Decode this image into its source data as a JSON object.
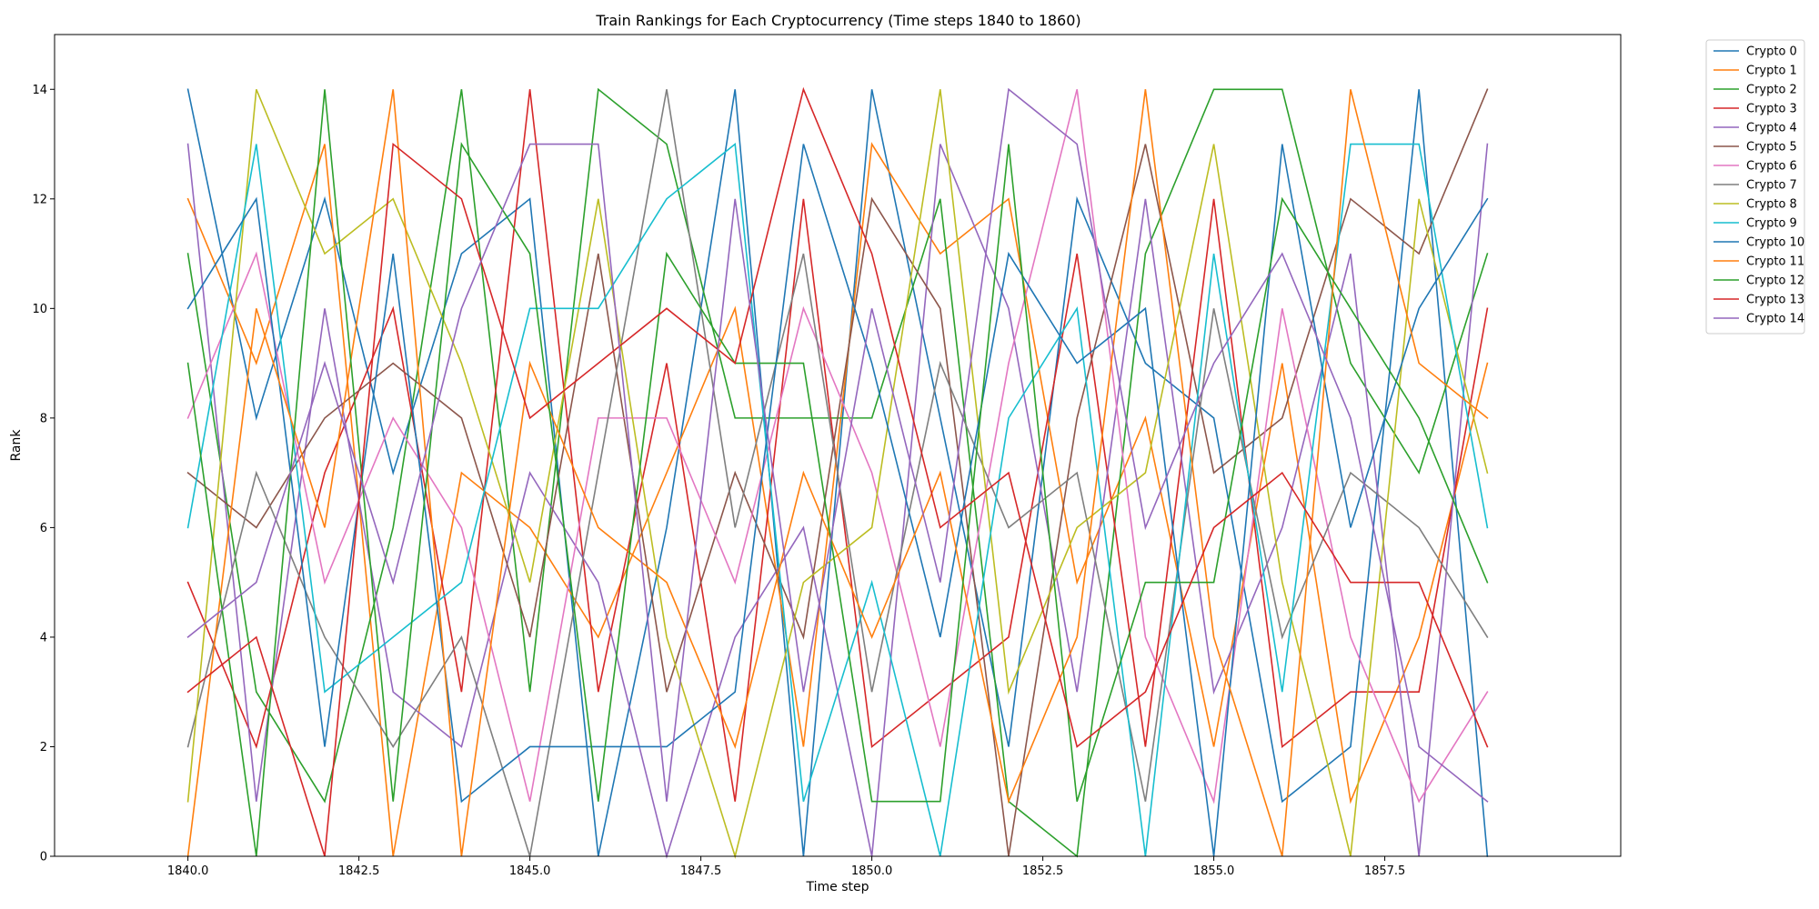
{
  "chart_data": {
    "type": "line",
    "title": "Train Rankings for Each Cryptocurrency (Time steps 1840 to 1860)",
    "xlabel": "Time step",
    "ylabel": "Rank",
    "xlim": [
      1838.05,
      1860.95
    ],
    "ylim": [
      0,
      15
    ],
    "xticks": [
      1840.0,
      1842.5,
      1845.0,
      1847.5,
      1850.0,
      1852.5,
      1855.0,
      1857.5
    ],
    "xtick_labels": [
      "1840.0",
      "1842.5",
      "1845.0",
      "1847.5",
      "1850.0",
      "1852.5",
      "1855.0",
      "1857.5"
    ],
    "yticks": [
      0,
      2,
      4,
      6,
      8,
      10,
      12,
      14
    ],
    "ytick_labels": [
      "0",
      "2",
      "4",
      "6",
      "8",
      "10",
      "12",
      "14"
    ],
    "grid": false,
    "legend_position": "outside-top-right",
    "x": [
      1840,
      1841,
      1842,
      1843,
      1844,
      1845,
      1846,
      1847,
      1848,
      1849,
      1850,
      1851,
      1852,
      1853,
      1854,
      1855,
      1856,
      1857,
      1858,
      1859
    ],
    "series": [
      {
        "name": "Crypto 0",
        "color": "#1f77b4",
        "values": [
          14,
          8,
          12,
          7,
          11,
          12,
          0,
          6,
          14,
          0,
          14,
          8,
          2,
          12,
          9,
          8,
          1,
          2,
          14,
          0
        ]
      },
      {
        "name": "Crypto 1",
        "color": "#ff7f0e",
        "values": [
          12,
          9,
          13,
          0,
          7,
          6,
          4,
          7,
          10,
          2,
          13,
          11,
          12,
          5,
          8,
          2,
          9,
          1,
          4,
          9
        ]
      },
      {
        "name": "Crypto 2",
        "color": "#2ca02c",
        "values": [
          11,
          3,
          1,
          6,
          14,
          3,
          14,
          13,
          8,
          8,
          8,
          12,
          1,
          0,
          11,
          14,
          14,
          9,
          7,
          11
        ]
      },
      {
        "name": "Crypto 3",
        "color": "#d62728",
        "values": [
          5,
          2,
          7,
          10,
          3,
          14,
          3,
          9,
          1,
          12,
          2,
          3,
          4,
          11,
          2,
          12,
          2,
          3,
          3,
          10
        ]
      },
      {
        "name": "Crypto 4",
        "color": "#9467bd",
        "values": [
          13,
          1,
          10,
          3,
          2,
          7,
          5,
          0,
          4,
          6,
          0,
          13,
          10,
          3,
          12,
          3,
          6,
          11,
          0,
          13
        ]
      },
      {
        "name": "Crypto 5",
        "color": "#8c564b",
        "values": [
          7,
          6,
          8,
          9,
          8,
          4,
          11,
          3,
          7,
          4,
          12,
          10,
          0,
          8,
          13,
          7,
          8,
          12,
          11,
          14
        ]
      },
      {
        "name": "Crypto 6",
        "color": "#e377c2",
        "values": [
          8,
          11,
          5,
          8,
          6,
          1,
          8,
          8,
          5,
          10,
          7,
          2,
          9,
          14,
          4,
          1,
          10,
          4,
          1,
          3
        ]
      },
      {
        "name": "Crypto 7",
        "color": "#7f7f7f",
        "values": [
          2,
          7,
          4,
          2,
          4,
          0,
          7,
          14,
          6,
          11,
          3,
          9,
          6,
          7,
          1,
          10,
          4,
          7,
          6,
          4
        ]
      },
      {
        "name": "Crypto 8",
        "color": "#bcbd22",
        "values": [
          1,
          14,
          11,
          12,
          9,
          5,
          12,
          4,
          0,
          5,
          6,
          14,
          3,
          6,
          7,
          13,
          5,
          0,
          12,
          7
        ]
      },
      {
        "name": "Crypto 9",
        "color": "#17becf",
        "values": [
          6,
          13,
          3,
          4,
          5,
          10,
          10,
          12,
          13,
          1,
          5,
          0,
          8,
          10,
          0,
          11,
          3,
          13,
          13,
          6
        ]
      },
      {
        "name": "Crypto 10",
        "color": "#1f77b4",
        "values": [
          10,
          12,
          2,
          11,
          1,
          2,
          2,
          2,
          3,
          13,
          9,
          4,
          11,
          9,
          10,
          0,
          13,
          6,
          10,
          12
        ]
      },
      {
        "name": "Crypto 11",
        "color": "#ff7f0e",
        "values": [
          0,
          10,
          6,
          14,
          0,
          9,
          6,
          5,
          2,
          7,
          4,
          7,
          1,
          4,
          14,
          4,
          0,
          14,
          9,
          8
        ]
      },
      {
        "name": "Crypto 12",
        "color": "#2ca02c",
        "values": [
          9,
          0,
          14,
          1,
          13,
          11,
          1,
          11,
          9,
          9,
          1,
          1,
          13,
          1,
          5,
          5,
          12,
          10,
          8,
          5
        ]
      },
      {
        "name": "Crypto 13",
        "color": "#d62728",
        "values": [
          3,
          4,
          0,
          13,
          12,
          8,
          9,
          10,
          9,
          14,
          11,
          6,
          7,
          2,
          3,
          6,
          7,
          5,
          5,
          2
        ]
      },
      {
        "name": "Crypto 14",
        "color": "#9467bd",
        "values": [
          4,
          5,
          9,
          5,
          10,
          13,
          13,
          1,
          12,
          3,
          10,
          5,
          14,
          13,
          6,
          9,
          11,
          8,
          2,
          1
        ]
      }
    ]
  }
}
